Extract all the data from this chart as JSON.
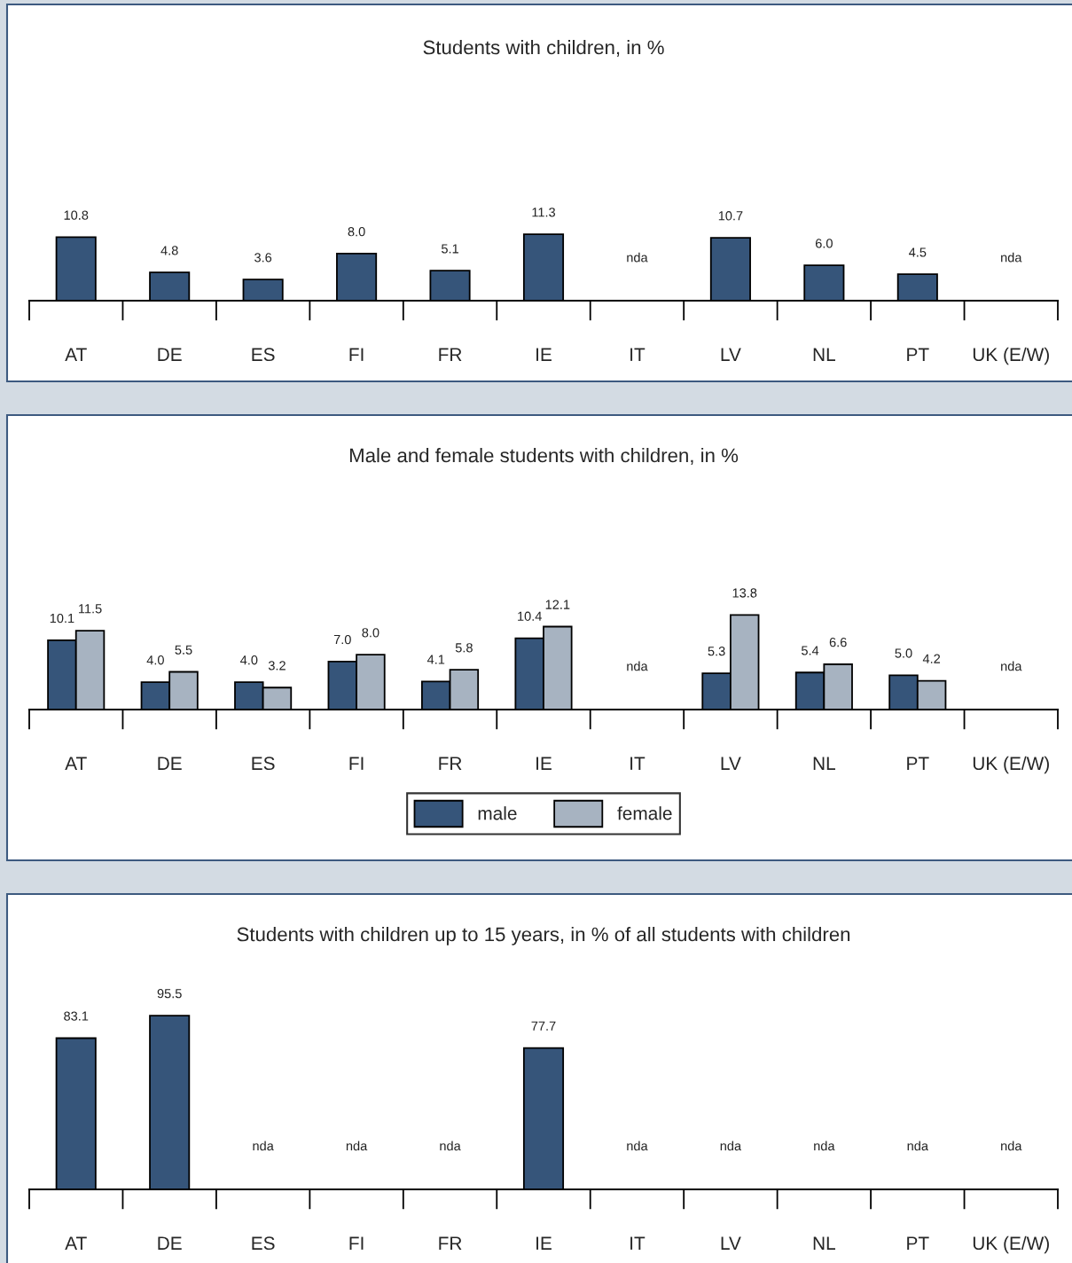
{
  "chart_data": [
    {
      "type": "bar",
      "title": "Students with children, in %",
      "categories": [
        "AT",
        "DE",
        "ES",
        "FI",
        "FR",
        "IE",
        "IT",
        "LV",
        "NL",
        "PT",
        "UK (E/W)"
      ],
      "grid": false,
      "legend": false,
      "series": [
        {
          "color": "#36557a",
          "values": [
            10.8,
            4.8,
            3.6,
            8.0,
            5.1,
            11.3,
            null,
            10.7,
            6.0,
            4.5,
            null
          ],
          "value_labels": [
            "10.8",
            "4.8",
            "3.6",
            "8.0",
            "5.1",
            "11.3",
            "nda",
            "10.7",
            "6.0",
            "4.5",
            "nda"
          ]
        }
      ]
    },
    {
      "type": "bar",
      "title": "Male and female students with children, in %",
      "categories": [
        "AT",
        "DE",
        "ES",
        "FI",
        "FR",
        "IE",
        "IT",
        "LV",
        "NL",
        "PT",
        "UK (E/W)"
      ],
      "grid": false,
      "legend": "bottom",
      "series": [
        {
          "name": "male",
          "color": "#36557a",
          "values": [
            10.1,
            4.0,
            4.0,
            7.0,
            4.1,
            10.4,
            null,
            5.3,
            5.4,
            5.0,
            null
          ],
          "value_labels": [
            "10.1",
            "4.0",
            "4.0",
            "7.0",
            "4.1",
            "10.4",
            "nda",
            "5.3",
            "5.4",
            "5.0",
            "nda"
          ]
        },
        {
          "name": "female",
          "color": "#a7b3c1",
          "values": [
            11.5,
            5.5,
            3.2,
            8.0,
            5.8,
            12.1,
            null,
            13.8,
            6.6,
            4.2,
            null
          ],
          "value_labels": [
            "11.5",
            "5.5",
            "3.2",
            "8.0",
            "5.8",
            "12.1",
            null,
            "13.8",
            "6.6",
            "4.2",
            null
          ]
        }
      ]
    },
    {
      "type": "bar",
      "title": "Students with children up to 15 years, in % of all students with children",
      "categories": [
        "AT",
        "DE",
        "ES",
        "FI",
        "FR",
        "IE",
        "IT",
        "LV",
        "NL",
        "PT",
        "UK (E/W)"
      ],
      "grid": false,
      "legend": false,
      "series": [
        {
          "color": "#36557a",
          "values": [
            83.1,
            95.5,
            null,
            null,
            null,
            77.7,
            null,
            null,
            null,
            null,
            null
          ],
          "value_labels": [
            "83.1",
            "95.5",
            "nda",
            "nda",
            "nda",
            "77.7",
            "nda",
            "nda",
            "nda",
            "nda",
            "nda"
          ]
        }
      ]
    }
  ]
}
